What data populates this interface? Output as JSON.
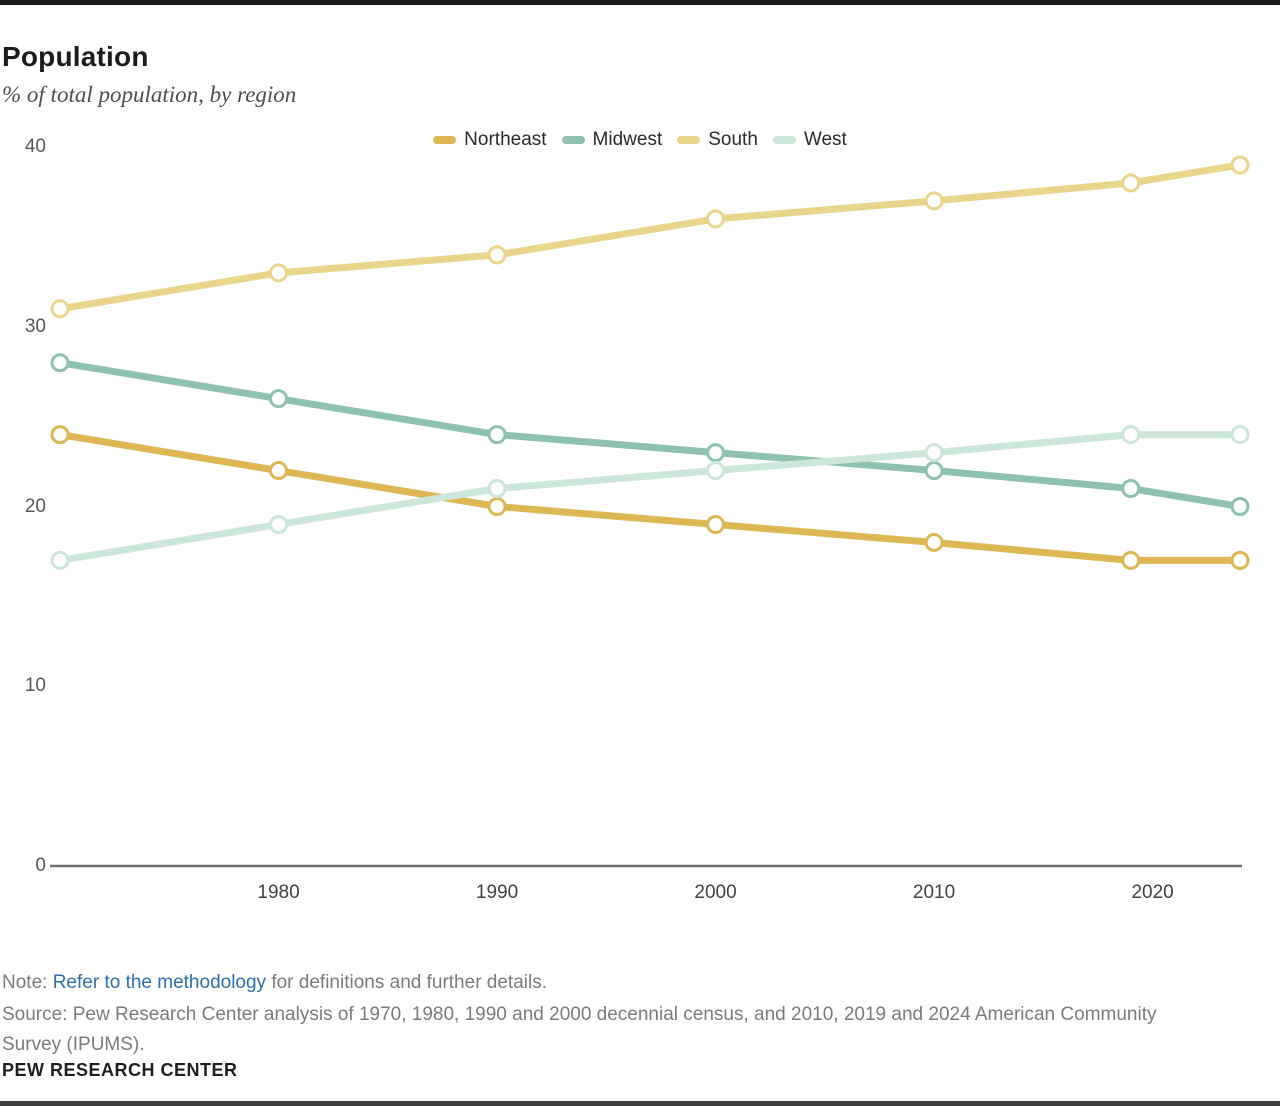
{
  "page": {
    "title": "Population",
    "subtitle": "% of total population, by region",
    "note": {
      "prefix": "Note: ",
      "link_label": "Refer to the methodology",
      "suffix": " for definitions and further details."
    },
    "source": "Source: Pew Research Center analysis of 1970, 1980, 1990 and 2000 decennial census, and 2010, 2019 and 2024 American Community Survey (IPUMS).",
    "brand": "PEW RESEARCH CENTER"
  },
  "colors": {
    "northeast": "#dcb754",
    "midwest": "#8ec2ae",
    "south": "#e9d58c",
    "west": "#cde6da",
    "link_blue": "#2e6fad",
    "axis_line": "#6e6e6e",
    "tick_text": "#57585a",
    "top_bar": "#1a1a1a",
    "bottom_bar": "#3d3d3d"
  },
  "chart_data": {
    "type": "line",
    "title": "Population",
    "subtitle": "% of total population, by region",
    "x": [
      1970,
      1980,
      1990,
      2000,
      2010,
      2019,
      2024
    ],
    "series": [
      {
        "name": "Northeast",
        "color": "#dcb754",
        "values": [
          24,
          22,
          20,
          19,
          18,
          17,
          17
        ]
      },
      {
        "name": "Midwest",
        "color": "#8ec2ae",
        "values": [
          28,
          26,
          24,
          23,
          22,
          21,
          20
        ]
      },
      {
        "name": "South",
        "color": "#e9d58c",
        "values": [
          31,
          33,
          34,
          36,
          37,
          38,
          39
        ]
      },
      {
        "name": "West",
        "color": "#cde6da",
        "values": [
          17,
          19,
          21,
          22,
          23,
          24,
          24
        ]
      }
    ],
    "xlim": [
      1970,
      2024
    ],
    "ylim": [
      0,
      40
    ],
    "y_ticks": [
      0,
      10,
      20,
      30,
      40
    ],
    "x_ticks": [
      1980,
      1990,
      2000,
      2010,
      2020
    ],
    "grid": false,
    "legend_position": "top-center",
    "marker": "open-circle"
  }
}
